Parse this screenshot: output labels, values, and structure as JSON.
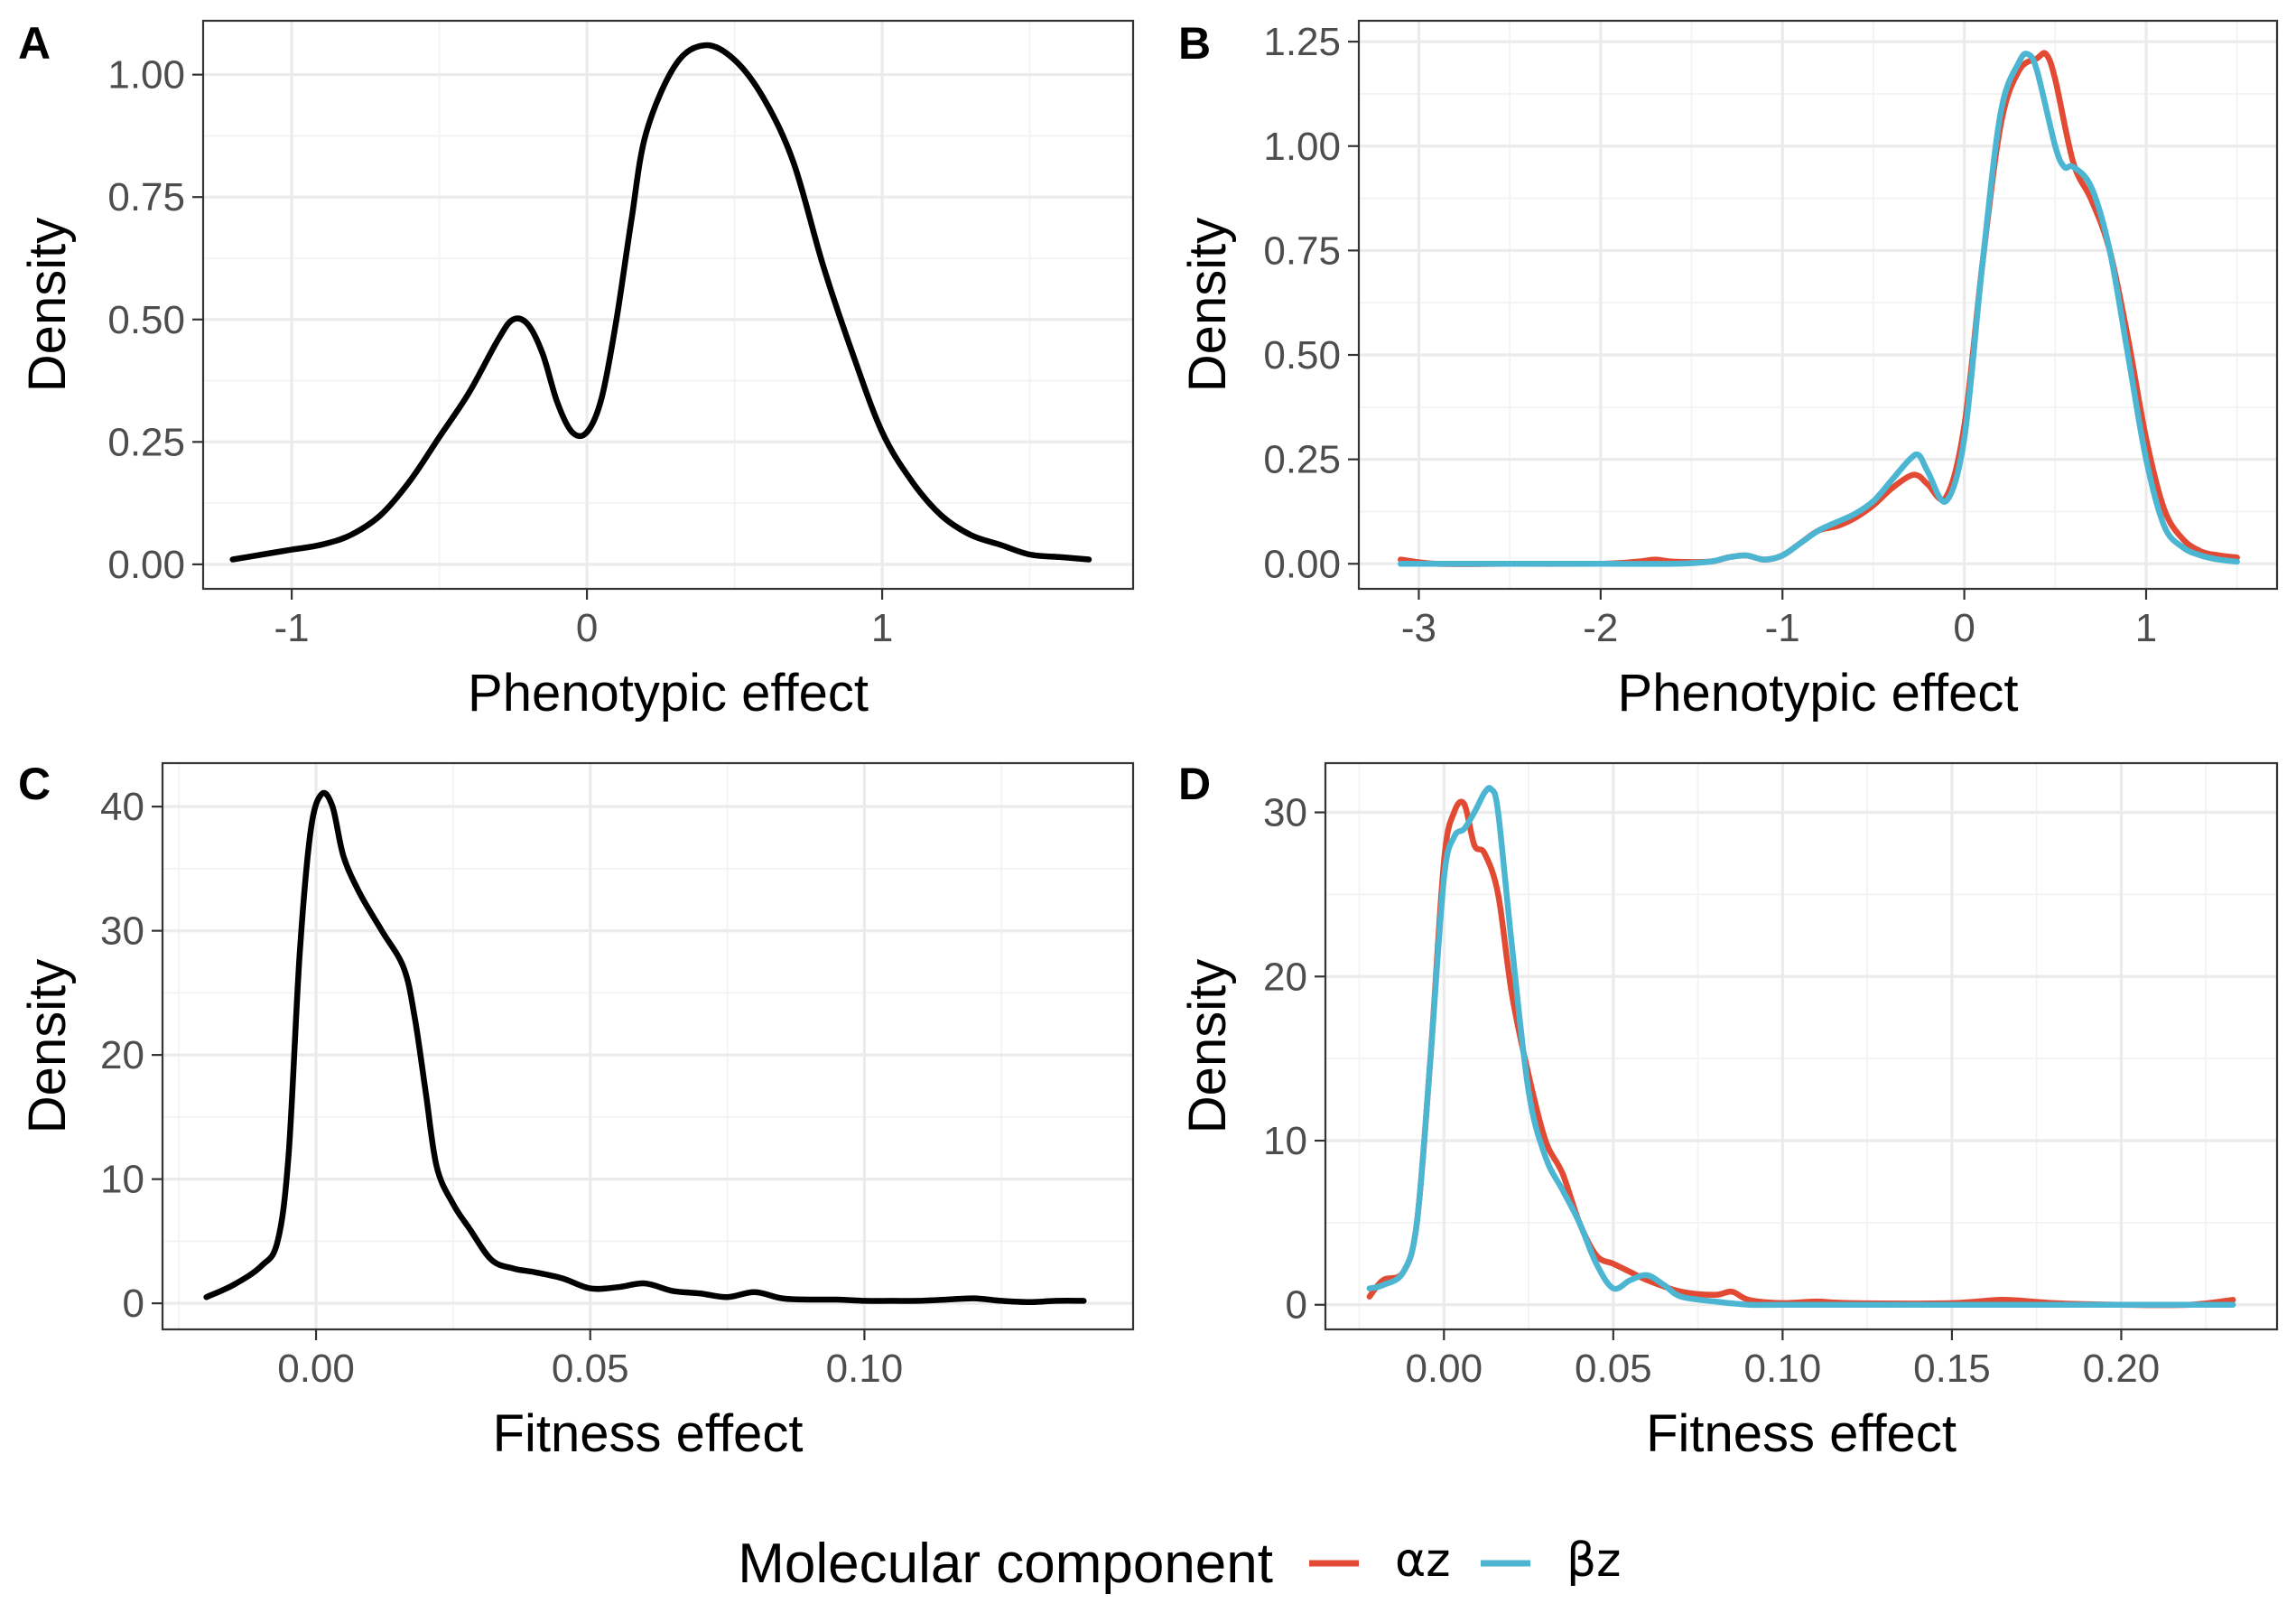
{
  "colors": {
    "single": "#000000",
    "alpha": "#e24a33",
    "beta": "#4cb6d2"
  },
  "legend": {
    "title": "Molecular component",
    "items": [
      {
        "label": "αz",
        "color": "#e24a33"
      },
      {
        "label": "βz",
        "color": "#4cb6d2"
      }
    ]
  },
  "chart_data": [
    {
      "tag": "A",
      "type": "line",
      "xlabel": "Phenotypic effect",
      "ylabel": "Density",
      "xlim": [
        -1.3,
        1.85
      ],
      "ylim": [
        -0.05,
        1.11
      ],
      "xticks": [
        -1,
        0,
        1
      ],
      "xtick_labels": [
        "-1",
        "0",
        "1"
      ],
      "yticks": [
        0,
        0.25,
        0.5,
        0.75,
        1.0
      ],
      "ytick_labels": [
        "0.00",
        "0.25",
        "0.50",
        "0.75",
        "1.00"
      ],
      "series": [
        {
          "color": "#000000",
          "x": [
            -1.2,
            -1.1,
            -1.0,
            -0.9,
            -0.8,
            -0.7,
            -0.6,
            -0.5,
            -0.4,
            -0.3,
            -0.25,
            -0.2,
            -0.15,
            -0.1,
            -0.05,
            0.0,
            0.05,
            0.1,
            0.15,
            0.2,
            0.3,
            0.4,
            0.5,
            0.6,
            0.7,
            0.8,
            0.9,
            1.0,
            1.1,
            1.2,
            1.3,
            1.4,
            1.5,
            1.6,
            1.7
          ],
          "y": [
            0.01,
            0.02,
            0.03,
            0.04,
            0.06,
            0.1,
            0.17,
            0.26,
            0.35,
            0.46,
            0.5,
            0.49,
            0.43,
            0.33,
            0.27,
            0.27,
            0.34,
            0.5,
            0.7,
            0.88,
            1.02,
            1.06,
            1.03,
            0.95,
            0.82,
            0.61,
            0.43,
            0.27,
            0.17,
            0.1,
            0.06,
            0.04,
            0.02,
            0.015,
            0.01
          ]
        }
      ]
    },
    {
      "tag": "B",
      "type": "line",
      "xlabel": "Phenotypic effect",
      "ylabel": "Density",
      "xlim": [
        -3.33,
        1.72
      ],
      "ylim": [
        -0.06,
        1.3
      ],
      "xticks": [
        -3,
        -2,
        -1,
        0,
        1
      ],
      "xtick_labels": [
        "-3",
        "-2",
        "-1",
        "0",
        "1"
      ],
      "yticks": [
        0,
        0.25,
        0.5,
        0.75,
        1.0,
        1.25
      ],
      "ytick_labels": [
        "0.00",
        "0.25",
        "0.50",
        "0.75",
        "1.00",
        "1.25"
      ],
      "series": [
        {
          "name": "αz",
          "color": "#e24a33",
          "x": [
            -3.1,
            -2.9,
            -2.5,
            -2.0,
            -1.8,
            -1.7,
            -1.6,
            -1.4,
            -1.3,
            -1.2,
            -1.1,
            -1.0,
            -0.9,
            -0.8,
            -0.7,
            -0.6,
            -0.5,
            -0.4,
            -0.3,
            -0.25,
            -0.2,
            -0.1,
            0.0,
            0.1,
            0.2,
            0.3,
            0.4,
            0.45,
            0.5,
            0.6,
            0.7,
            0.8,
            0.9,
            1.0,
            1.1,
            1.2,
            1.3,
            1.4,
            1.5
          ],
          "y": [
            0.01,
            0.0,
            0.0,
            0.0,
            0.005,
            0.01,
            0.005,
            0.005,
            0.015,
            0.02,
            0.01,
            0.02,
            0.05,
            0.08,
            0.09,
            0.11,
            0.14,
            0.18,
            0.21,
            0.21,
            0.19,
            0.16,
            0.33,
            0.72,
            1.05,
            1.18,
            1.21,
            1.22,
            1.16,
            0.96,
            0.87,
            0.75,
            0.54,
            0.3,
            0.13,
            0.06,
            0.03,
            0.02,
            0.015
          ]
        },
        {
          "name": "βz",
          "color": "#4cb6d2",
          "x": [
            -3.1,
            -2.5,
            -2.0,
            -1.6,
            -1.4,
            -1.3,
            -1.2,
            -1.1,
            -1.0,
            -0.9,
            -0.8,
            -0.7,
            -0.6,
            -0.5,
            -0.4,
            -0.3,
            -0.25,
            -0.2,
            -0.1,
            0.0,
            0.1,
            0.2,
            0.3,
            0.35,
            0.4,
            0.5,
            0.55,
            0.6,
            0.7,
            0.8,
            0.9,
            1.0,
            1.1,
            1.2,
            1.3,
            1.4,
            1.5
          ],
          "y": [
            0.0,
            0.0,
            0.0,
            0.0,
            0.005,
            0.015,
            0.02,
            0.01,
            0.02,
            0.05,
            0.08,
            0.1,
            0.12,
            0.15,
            0.2,
            0.25,
            0.26,
            0.22,
            0.15,
            0.3,
            0.72,
            1.08,
            1.2,
            1.22,
            1.18,
            1.0,
            0.95,
            0.95,
            0.9,
            0.75,
            0.5,
            0.25,
            0.09,
            0.04,
            0.02,
            0.01,
            0.005
          ]
        }
      ]
    },
    {
      "tag": "C",
      "type": "line",
      "xlabel": "Fitness effect",
      "ylabel": "Density",
      "xlim": [
        -0.028,
        0.149
      ],
      "ylim": [
        -2.1,
        43.5
      ],
      "xticks": [
        0.0,
        0.05,
        0.1
      ],
      "xtick_labels": [
        "0.00",
        "0.05",
        "0.10"
      ],
      "yticks": [
        0,
        10,
        20,
        30,
        40
      ],
      "ytick_labels": [
        "0",
        "10",
        "20",
        "30",
        "40"
      ],
      "series": [
        {
          "color": "#000000",
          "x": [
            -0.02,
            -0.015,
            -0.01,
            -0.007,
            -0.005,
            -0.003,
            -0.001,
            0.001,
            0.003,
            0.005,
            0.008,
            0.012,
            0.016,
            0.018,
            0.02,
            0.022,
            0.025,
            0.028,
            0.032,
            0.036,
            0.04,
            0.045,
            0.05,
            0.055,
            0.06,
            0.065,
            0.07,
            0.075,
            0.08,
            0.085,
            0.09,
            0.095,
            0.1,
            0.105,
            0.11,
            0.115,
            0.12,
            0.125,
            0.13,
            0.135,
            0.14
          ],
          "y": [
            0.5,
            1.5,
            3.0,
            5.0,
            12.0,
            28.0,
            38.0,
            41.0,
            40.0,
            36.0,
            33.0,
            30.0,
            27.0,
            23.0,
            17.0,
            11.0,
            8.0,
            6.0,
            3.5,
            2.8,
            2.5,
            2.0,
            1.2,
            1.3,
            1.6,
            1.0,
            0.8,
            0.5,
            0.9,
            0.4,
            0.3,
            0.3,
            0.2,
            0.2,
            0.2,
            0.3,
            0.4,
            0.2,
            0.1,
            0.2,
            0.2
          ]
        }
      ]
    },
    {
      "tag": "D",
      "type": "line",
      "xlabel": "Fitness effect",
      "ylabel": "Density",
      "xlim": [
        -0.035,
        0.246
      ],
      "ylim": [
        -1.5,
        33.0
      ],
      "xticks": [
        0.0,
        0.05,
        0.1,
        0.15,
        0.2
      ],
      "xtick_labels": [
        "0.00",
        "0.05",
        "0.10",
        "0.15",
        "0.20"
      ],
      "yticks": [
        0,
        10,
        20,
        30
      ],
      "ytick_labels": [
        "0",
        "10",
        "20",
        "30"
      ],
      "series": [
        {
          "name": "αz",
          "color": "#e24a33",
          "x": [
            -0.022,
            -0.018,
            -0.012,
            -0.008,
            -0.004,
            0.0,
            0.003,
            0.006,
            0.009,
            0.012,
            0.016,
            0.02,
            0.025,
            0.03,
            0.035,
            0.04,
            0.045,
            0.05,
            0.055,
            0.06,
            0.07,
            0.08,
            0.085,
            0.09,
            0.1,
            0.11,
            0.12,
            0.15,
            0.165,
            0.18,
            0.2,
            0.22,
            0.233
          ],
          "y": [
            0.5,
            1.5,
            2.0,
            5.0,
            15.0,
            27.0,
            30.0,
            30.5,
            28.0,
            27.5,
            25.0,
            19.0,
            14.0,
            10.0,
            8.0,
            5.0,
            3.0,
            2.5,
            2.0,
            1.5,
            0.8,
            0.6,
            0.8,
            0.3,
            0.1,
            0.2,
            0.1,
            0.1,
            0.3,
            0.1,
            0.0,
            0.0,
            0.3
          ]
        },
        {
          "name": "βz",
          "color": "#4cb6d2",
          "x": [
            -0.022,
            -0.018,
            -0.012,
            -0.008,
            -0.004,
            0.0,
            0.003,
            0.006,
            0.009,
            0.012,
            0.014,
            0.016,
            0.02,
            0.025,
            0.03,
            0.035,
            0.04,
            0.045,
            0.05,
            0.055,
            0.06,
            0.065,
            0.07,
            0.08,
            0.09,
            0.1,
            0.12,
            0.15,
            0.18,
            0.2,
            0.22,
            0.233
          ],
          "y": [
            1.0,
            1.2,
            2.0,
            5.0,
            15.0,
            26.0,
            28.5,
            29.0,
            30.0,
            31.2,
            31.4,
            30.0,
            22.0,
            13.0,
            9.0,
            7.0,
            5.0,
            2.5,
            1.0,
            1.5,
            1.8,
            1.2,
            0.5,
            0.2,
            0.0,
            0.0,
            0.0,
            0.0,
            0.0,
            0.0,
            0.0,
            0.0
          ]
        }
      ]
    }
  ]
}
